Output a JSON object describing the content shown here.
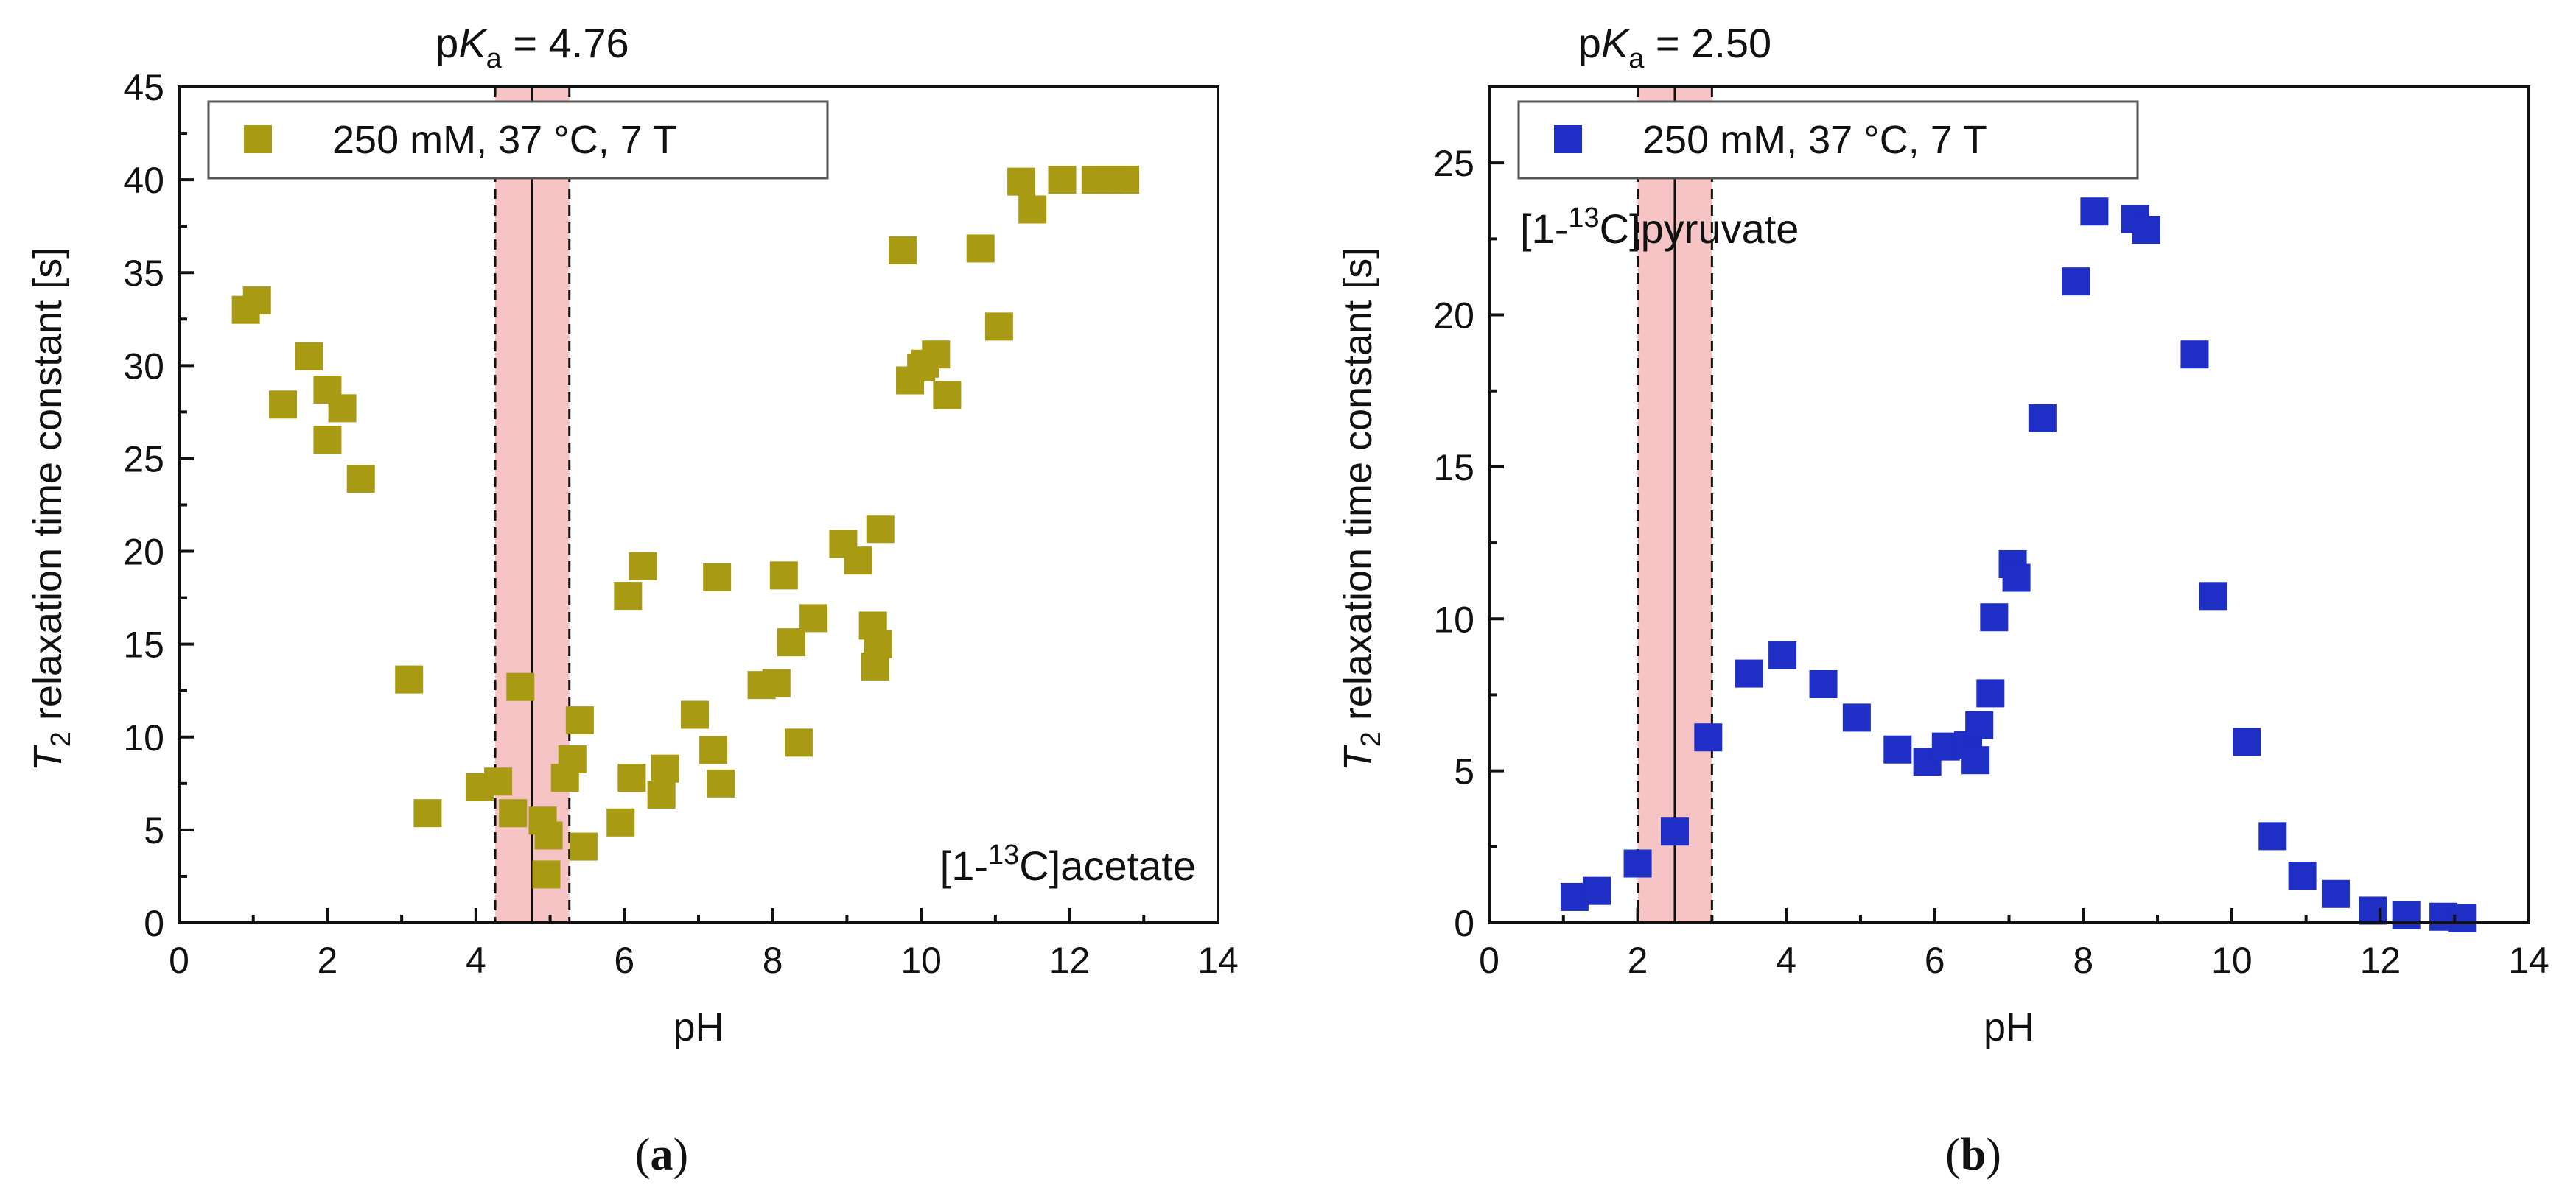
{
  "chart_data": [
    {
      "type": "scatter",
      "panel_label": "(a)",
      "xlabel": "pH",
      "ylabel_main": "T",
      "ylabel_sub": "2",
      "ylabel_rest": " relaxation time constant [s]",
      "xlim": [
        0,
        14
      ],
      "ylim": [
        0,
        45
      ],
      "xticks": [
        0,
        2,
        4,
        6,
        8,
        10,
        12,
        14
      ],
      "yticks": [
        0,
        5,
        10,
        15,
        20,
        25,
        30,
        35,
        40,
        45
      ],
      "pka": {
        "value": 4.76,
        "band": [
          4.26,
          5.26
        ],
        "label_prefix": "p",
        "label_italic": "K",
        "label_sub": "a",
        "label_suffix": " = 4.76"
      },
      "legend": {
        "label": "250 mM, 37 °C, 7 T",
        "placement": "top-left"
      },
      "annotation": {
        "prefix": "[1-",
        "sup": "13",
        "suffix": "C]acetate",
        "placement": "bottom-right"
      },
      "series": [
        {
          "name": "250 mM, 37 °C, 7 T",
          "color": "#a89a12",
          "points": [
            [
              0.9,
              33.0
            ],
            [
              1.05,
              33.5
            ],
            [
              1.4,
              27.9
            ],
            [
              1.75,
              30.5
            ],
            [
              2.0,
              28.7
            ],
            [
              2.0,
              26.0
            ],
            [
              2.2,
              27.7
            ],
            [
              2.45,
              23.9
            ],
            [
              3.1,
              13.1
            ],
            [
              3.35,
              5.9
            ],
            [
              4.05,
              7.3
            ],
            [
              4.3,
              7.6
            ],
            [
              4.5,
              5.9
            ],
            [
              4.6,
              12.7
            ],
            [
              4.9,
              5.5
            ],
            [
              4.95,
              2.6
            ],
            [
              4.98,
              4.7
            ],
            [
              5.2,
              7.8
            ],
            [
              5.3,
              8.8
            ],
            [
              5.4,
              10.9
            ],
            [
              5.45,
              4.1
            ],
            [
              5.95,
              5.4
            ],
            [
              6.05,
              17.6
            ],
            [
              6.1,
              7.8
            ],
            [
              6.25,
              19.2
            ],
            [
              6.5,
              6.9
            ],
            [
              6.55,
              8.3
            ],
            [
              6.95,
              11.2
            ],
            [
              7.2,
              9.3
            ],
            [
              7.25,
              18.6
            ],
            [
              7.3,
              7.5
            ],
            [
              7.85,
              12.8
            ],
            [
              8.05,
              12.9
            ],
            [
              8.15,
              18.7
            ],
            [
              8.25,
              15.1
            ],
            [
              8.35,
              9.7
            ],
            [
              8.55,
              16.4
            ],
            [
              8.95,
              20.4
            ],
            [
              9.15,
              19.5
            ],
            [
              9.35,
              16.0
            ],
            [
              9.38,
              13.8
            ],
            [
              9.42,
              15.0
            ],
            [
              9.45,
              21.2
            ],
            [
              9.75,
              36.2
            ],
            [
              9.85,
              29.2
            ],
            [
              10.0,
              29.9
            ],
            [
              10.05,
              30.1
            ],
            [
              10.2,
              30.6
            ],
            [
              10.35,
              28.4
            ],
            [
              10.8,
              36.3
            ],
            [
              11.05,
              32.1
            ],
            [
              11.35,
              39.9
            ],
            [
              11.5,
              38.4
            ],
            [
              11.9,
              40.0
            ],
            [
              12.35,
              40.0
            ],
            [
              12.55,
              40.0
            ],
            [
              12.75,
              40.0
            ]
          ]
        }
      ]
    },
    {
      "type": "scatter",
      "panel_label": "(b)",
      "xlabel": "pH",
      "ylabel_main": "T",
      "ylabel_sub": "2",
      "ylabel_rest": " relaxation time constant [s]",
      "xlim": [
        0,
        14
      ],
      "ylim": [
        0,
        27.5
      ],
      "xticks": [
        0,
        2,
        4,
        6,
        8,
        10,
        12,
        14
      ],
      "yticks": [
        0,
        5,
        10,
        15,
        20,
        25
      ],
      "pka": {
        "value": 2.5,
        "band": [
          2.0,
          3.0
        ],
        "label_prefix": "p",
        "label_italic": "K",
        "label_sub": "a",
        "label_suffix": " = 2.50"
      },
      "legend": {
        "label": "250 mM, 37 °C, 7 T",
        "placement": "top-left"
      },
      "annotation": {
        "prefix": "[1-",
        "sup": "13",
        "suffix": "C]pyruvate",
        "placement": "top-left"
      },
      "series": [
        {
          "name": "250 mM, 37 °C, 7 T",
          "color": "#1f2ec4",
          "points": [
            [
              1.15,
              0.85
            ],
            [
              1.45,
              1.05
            ],
            [
              2.0,
              1.95
            ],
            [
              2.5,
              3.0
            ],
            [
              2.95,
              6.1
            ],
            [
              3.5,
              8.2
            ],
            [
              3.95,
              8.8
            ],
            [
              4.5,
              7.85
            ],
            [
              4.95,
              6.75
            ],
            [
              5.5,
              5.7
            ],
            [
              5.9,
              5.3
            ],
            [
              6.15,
              5.8
            ],
            [
              6.45,
              5.85
            ],
            [
              6.55,
              5.35
            ],
            [
              6.6,
              6.5
            ],
            [
              6.75,
              7.55
            ],
            [
              6.8,
              10.05
            ],
            [
              7.05,
              11.8
            ],
            [
              7.1,
              11.35
            ],
            [
              7.45,
              16.6
            ],
            [
              7.9,
              21.1
            ],
            [
              8.15,
              23.4
            ],
            [
              8.7,
              23.15
            ],
            [
              8.85,
              22.8
            ],
            [
              9.5,
              18.7
            ],
            [
              9.75,
              10.75
            ],
            [
              10.2,
              5.95
            ],
            [
              10.55,
              2.85
            ],
            [
              10.95,
              1.55
            ],
            [
              11.4,
              0.95
            ],
            [
              11.9,
              0.4
            ],
            [
              12.35,
              0.25
            ],
            [
              12.85,
              0.2
            ],
            [
              13.1,
              0.15
            ]
          ]
        }
      ]
    }
  ]
}
